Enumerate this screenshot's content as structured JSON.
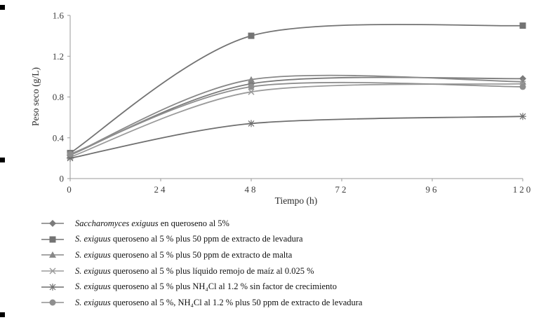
{
  "chart_data": {
    "type": "line",
    "x": [
      0,
      48,
      120
    ],
    "xlim": [
      0,
      120
    ],
    "ylim": [
      0,
      1.6
    ],
    "x_ticks": [
      0,
      24,
      48,
      72,
      96,
      120
    ],
    "y_ticks": [
      0,
      0.4,
      0.8,
      1.2,
      1.6
    ],
    "xlabel": "Tiempo (h)",
    "ylabel": "Peso seco (g/L)",
    "grid": false,
    "legend_position": "bottom",
    "line_style": "smooth",
    "axis_color": "#9a9a9a",
    "series": [
      {
        "name": "Saccharomyces exiguus en queroseno al 5%",
        "marker": "diamond",
        "color": "#7b7b7b",
        "values": [
          0.23,
          0.93,
          0.98
        ]
      },
      {
        "name": "S. exiguus queroseno al 5 % plus 50 ppm de extracto de levadura",
        "marker": "square",
        "color": "#737373",
        "values": [
          0.25,
          1.4,
          1.5
        ]
      },
      {
        "name": "S. exiguus queroseno al 5 % plus 50 ppm de extracto de malta",
        "marker": "triangle",
        "color": "#888888",
        "values": [
          0.23,
          0.97,
          0.95
        ]
      },
      {
        "name": "S. exiguus queroseno al 5 % plus líquido remojo de maíz al 0.025 %",
        "marker": "x",
        "color": "#9b9b9b",
        "values": [
          0.21,
          0.85,
          0.93
        ]
      },
      {
        "name": "S. exiguus queroseno al 5 % plus NH₄Cl al 1.2 % sin factor de crecimiento",
        "marker": "asterisk",
        "color": "#6f6f6f",
        "values": [
          0.2,
          0.54,
          0.61
        ]
      },
      {
        "name": "S. exiguus queroseno al 5 %, NH₄Cl al 1.2 % plus 50 ppm de extracto de levadura",
        "marker": "circle",
        "color": "#8f8f8f",
        "values": [
          0.24,
          0.9,
          0.9
        ]
      }
    ]
  },
  "legend": {
    "entries": [
      {
        "italic": "Saccharomyces exiguus",
        "rest": " en queroseno al 5%"
      },
      {
        "italic": "S. exiguus",
        "rest": " queroseno al 5 % plus 50 ppm de extracto de levadura"
      },
      {
        "italic": "S. exiguus",
        "rest": " queroseno al 5 % plus 50 ppm de extracto de malta"
      },
      {
        "italic": "S. exiguus",
        "rest": " queroseno al 5 % plus líquido remojo de maíz al 0.025 %"
      },
      {
        "italic": "S. exiguus",
        "rest": " queroseno al 5 % plus NH₄Cl al 1.2 % sin factor de crecimiento"
      },
      {
        "italic": "S. exiguus",
        "rest": " queroseno al 5 %, NH₄Cl al 1.2 % plus 50 ppm de extracto de levadura"
      }
    ]
  }
}
